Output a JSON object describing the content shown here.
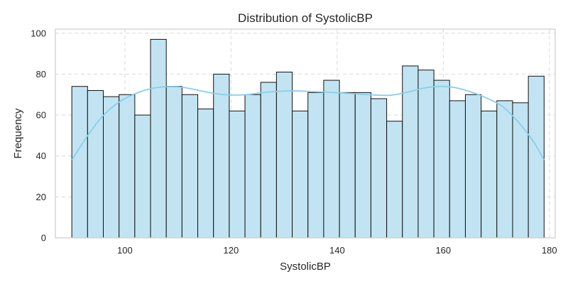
{
  "chart_data": {
    "type": "bar",
    "subtype": "histogram",
    "title": "Distribution of SystolicBP",
    "xlabel": "SystolicBP",
    "ylabel": "Frequency",
    "xlim": [
      86.9,
      181.1
    ],
    "ylim": [
      0,
      102
    ],
    "x_ticks": [
      100,
      120,
      140,
      160,
      180
    ],
    "y_ticks": [
      0,
      20,
      40,
      60,
      80,
      100
    ],
    "grid": true,
    "bin_start": 90,
    "bin_width": 2.9667,
    "frequencies": [
      74,
      72,
      69,
      70,
      60,
      97,
      74,
      70,
      63,
      80,
      62,
      70,
      76,
      81,
      62,
      71,
      77,
      71,
      71,
      68,
      57,
      84,
      82,
      77,
      67,
      70,
      62,
      67,
      66,
      79
    ],
    "kde": {
      "x": [
        90,
        93,
        96,
        99,
        102,
        105,
        108,
        111,
        114,
        117,
        120,
        123,
        126,
        129,
        132,
        135,
        138,
        141,
        144,
        147,
        150,
        153,
        156,
        159,
        162,
        165,
        168,
        171,
        174,
        177,
        179
      ],
      "y": [
        38,
        50,
        60,
        66.5,
        70.5,
        73,
        73.8,
        73.5,
        72,
        70.5,
        69.8,
        70,
        71,
        71.6,
        71.8,
        71.5,
        71.2,
        70.8,
        70.3,
        69.8,
        69.7,
        71,
        73,
        74,
        73.5,
        71.5,
        68.5,
        64.5,
        57,
        47,
        38
      ]
    },
    "colors": {
      "bar_fill": "#c2e4f2",
      "bar_stroke": "#111111",
      "kde_line": "#87ceeb",
      "grid": "#d9d9d9",
      "frame": "#cccccc",
      "text": "#262626"
    }
  }
}
